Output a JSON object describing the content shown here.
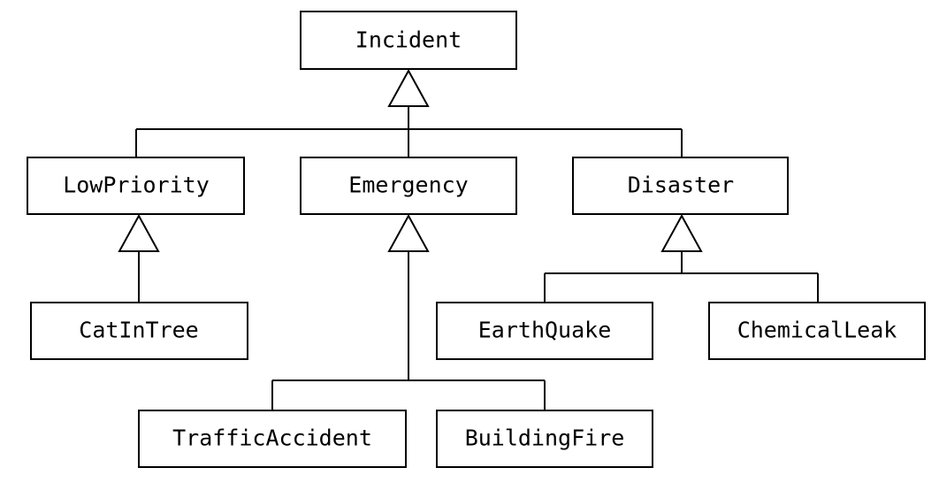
{
  "classes": {
    "incident": "Incident",
    "low_priority": "LowPriority",
    "emergency": "Emergency",
    "disaster": "Disaster",
    "cat_in_tree": "CatInTree",
    "earth_quake": "EarthQuake",
    "chemical_leak": "ChemicalLeak",
    "traffic_accident": "TrafficAccident",
    "building_fire": "BuildingFire"
  },
  "generalizations": [
    {
      "parent": "Incident",
      "children": [
        "LowPriority",
        "Emergency",
        "Disaster"
      ]
    },
    {
      "parent": "LowPriority",
      "children": [
        "CatInTree"
      ]
    },
    {
      "parent": "Emergency",
      "children": [
        "TrafficAccident",
        "BuildingFire"
      ]
    },
    {
      "parent": "Disaster",
      "children": [
        "EarthQuake",
        "ChemicalLeak"
      ]
    }
  ],
  "colors": {
    "line": "#000000",
    "box_fill": "#ffffff"
  }
}
